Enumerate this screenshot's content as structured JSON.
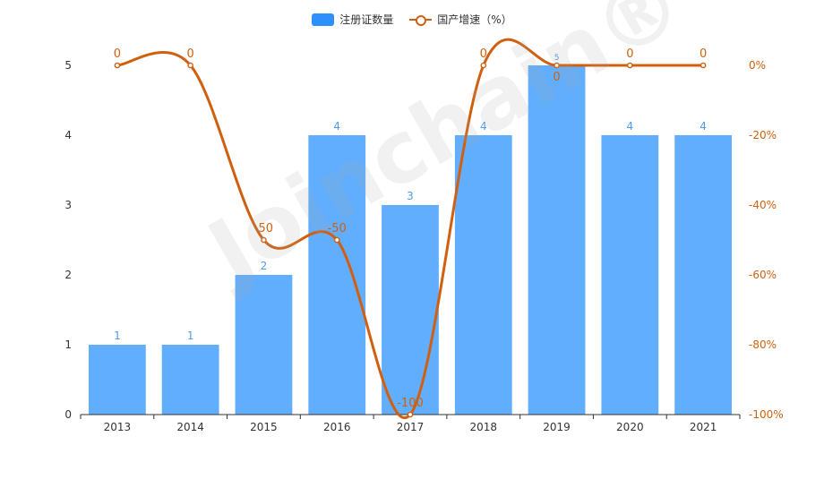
{
  "colors": {
    "bar": "#61aefe",
    "bar_legend": "#2e90fa",
    "line": "#d0600f",
    "bar_label": "#4f9de8",
    "axis": "#333333"
  },
  "legend": {
    "bar_label": "注册证数量",
    "line_label": "国产增速（%）"
  },
  "watermark": "Joinchain®",
  "chart_data": {
    "type": "bar",
    "categories": [
      "2013",
      "2014",
      "2015",
      "2016",
      "2017",
      "2018",
      "2019",
      "2020",
      "2021"
    ],
    "series": [
      {
        "name": "注册证数量",
        "type": "bar",
        "axis": "left",
        "values": [
          1,
          1,
          2,
          4,
          3,
          4,
          5,
          4,
          4
        ]
      },
      {
        "name": "国产增速（%）",
        "type": "line",
        "axis": "right",
        "smooth": true,
        "values": [
          0,
          0,
          -50,
          -50,
          -100,
          0,
          0,
          0,
          0
        ]
      }
    ],
    "y_left": {
      "lim": [
        0,
        5
      ],
      "ticks": [
        "0",
        "1",
        "2",
        "3",
        "4",
        "5"
      ]
    },
    "y_right": {
      "lim": [
        -100,
        0
      ],
      "ticks": [
        "-100%",
        "-80%",
        "-60%",
        "-40%",
        "-20%",
        "0%"
      ]
    },
    "legend_position": "top-center",
    "grid": false
  }
}
